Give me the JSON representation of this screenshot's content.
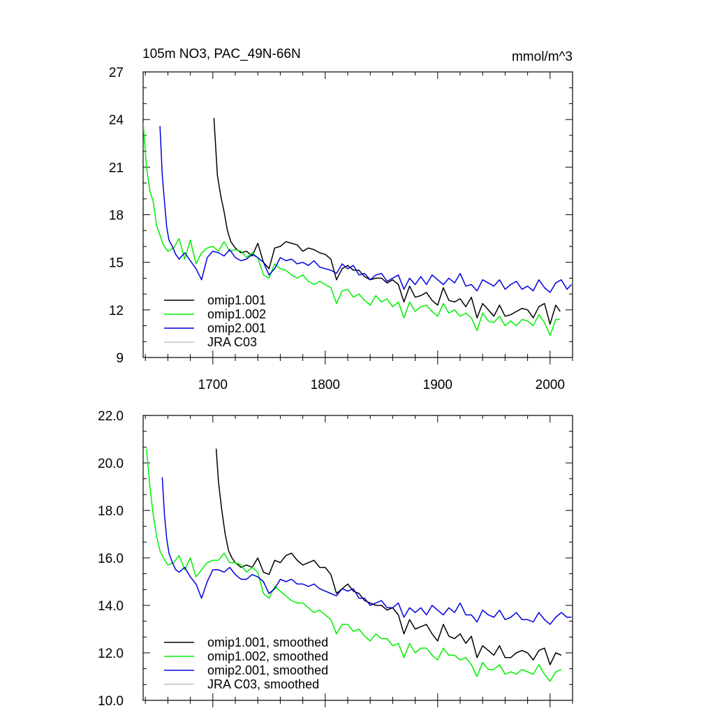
{
  "chart_data": [
    {
      "type": "line",
      "title": "105m NO3, PAC_49N-66N",
      "units": "mmol/m^3",
      "xlabel": "",
      "ylabel": "",
      "xlim": [
        1638,
        2020
      ],
      "ylim": [
        9,
        27
      ],
      "x_ticks": [
        1700,
        1800,
        1900,
        2000
      ],
      "y_ticks": [
        9,
        12,
        15,
        18,
        21,
        24,
        27
      ],
      "y_tick_labels": [
        "9",
        "12",
        "15",
        "18",
        "21",
        "24",
        "27"
      ],
      "legend": "bottom-left",
      "series": [
        {
          "name": "omip1.001",
          "color": "#000000",
          "x": [
            1701,
            1704,
            1707,
            1710,
            1713,
            1716,
            1720,
            1725,
            1730,
            1735,
            1740,
            1745,
            1750,
            1755,
            1760,
            1765,
            1770,
            1775,
            1780,
            1785,
            1790,
            1795,
            1800,
            1805,
            1810,
            1815,
            1820,
            1825,
            1830,
            1835,
            1840,
            1845,
            1850,
            1855,
            1860,
            1865,
            1870,
            1875,
            1880,
            1885,
            1890,
            1895,
            1900,
            1905,
            1910,
            1915,
            1920,
            1925,
            1930,
            1935,
            1940,
            1945,
            1950,
            1955,
            1960,
            1965,
            1970,
            1975,
            1980,
            1985,
            1990,
            1995,
            2000,
            2005,
            2009
          ],
          "values": [
            24.1,
            20.5,
            19.2,
            18.2,
            17.0,
            16.3,
            15.9,
            15.6,
            15.7,
            15.4,
            16.2,
            15.0,
            14.6,
            15.9,
            16.0,
            16.3,
            16.2,
            16.1,
            15.7,
            15.9,
            15.8,
            15.6,
            15.5,
            15.2,
            13.9,
            14.6,
            14.8,
            14.5,
            14.5,
            14.1,
            13.9,
            14.0,
            14.0,
            13.7,
            13.9,
            13.6,
            12.5,
            13.5,
            12.8,
            12.9,
            13.1,
            12.6,
            12.3,
            13.4,
            12.6,
            12.5,
            12.7,
            12.2,
            12.8,
            11.5,
            12.4,
            12.0,
            11.6,
            12.3,
            11.6,
            11.7,
            11.9,
            12.1,
            12.0,
            11.5,
            12.2,
            12.4,
            11.1,
            12.3,
            11.9
          ]
        },
        {
          "name": "omip1.002",
          "color": "#00ee00",
          "x": [
            1638,
            1641,
            1644,
            1647,
            1650,
            1653,
            1656,
            1660,
            1665,
            1670,
            1675,
            1680,
            1685,
            1690,
            1695,
            1700,
            1705,
            1710,
            1715,
            1720,
            1725,
            1730,
            1735,
            1740,
            1745,
            1750,
            1755,
            1760,
            1765,
            1770,
            1775,
            1780,
            1785,
            1790,
            1795,
            1800,
            1805,
            1810,
            1815,
            1820,
            1825,
            1830,
            1835,
            1840,
            1845,
            1850,
            1855,
            1860,
            1865,
            1870,
            1875,
            1880,
            1885,
            1890,
            1895,
            1900,
            1905,
            1910,
            1915,
            1920,
            1925,
            1930,
            1935,
            1940,
            1945,
            1950,
            1955,
            1960,
            1965,
            1970,
            1975,
            1980,
            1985,
            1990,
            1995,
            2000,
            2005,
            2009
          ],
          "values": [
            23.8,
            21.0,
            19.5,
            18.8,
            17.3,
            16.7,
            16.1,
            15.7,
            15.9,
            16.5,
            15.2,
            16.4,
            14.9,
            15.6,
            15.9,
            16.0,
            15.7,
            16.3,
            15.7,
            15.8,
            15.7,
            15.3,
            15.6,
            15.3,
            14.2,
            14.0,
            14.9,
            14.6,
            14.5,
            14.2,
            14.0,
            14.2,
            13.8,
            13.6,
            13.8,
            13.6,
            13.4,
            12.4,
            13.2,
            13.3,
            12.8,
            13.0,
            12.6,
            12.3,
            12.9,
            12.5,
            12.7,
            12.2,
            12.5,
            11.5,
            12.5,
            11.9,
            12.2,
            12.3,
            11.9,
            11.6,
            12.4,
            11.8,
            12.0,
            11.6,
            11.8,
            11.5,
            10.7,
            11.8,
            11.3,
            11.2,
            11.6,
            11.0,
            11.3,
            11.0,
            11.4,
            11.3,
            11.0,
            11.7,
            11.2,
            10.4,
            11.4,
            11.4
          ]
        },
        {
          "name": "omip2.001",
          "color": "#0000dd",
          "x": [
            1653,
            1655,
            1657,
            1659,
            1661,
            1664,
            1667,
            1670,
            1675,
            1680,
            1685,
            1690,
            1695,
            1700,
            1705,
            1710,
            1715,
            1720,
            1725,
            1730,
            1735,
            1740,
            1745,
            1750,
            1755,
            1760,
            1765,
            1770,
            1775,
            1780,
            1785,
            1790,
            1795,
            1800,
            1805,
            1810,
            1815,
            1820,
            1825,
            1830,
            1835,
            1840,
            1845,
            1850,
            1855,
            1860,
            1865,
            1870,
            1875,
            1880,
            1885,
            1890,
            1895,
            1900,
            1905,
            1910,
            1915,
            1920,
            1925,
            1930,
            1935,
            1940,
            1945,
            1950,
            1955,
            1960,
            1965,
            1970,
            1975,
            1980,
            1985,
            1990,
            1995,
            2000,
            2005,
            2010,
            2015,
            2019
          ],
          "values": [
            23.6,
            20.5,
            18.8,
            17.2,
            16.4,
            16.0,
            15.5,
            15.2,
            15.6,
            15.1,
            14.6,
            13.9,
            15.3,
            15.7,
            15.6,
            15.4,
            15.8,
            15.3,
            15.1,
            15.2,
            15.5,
            15.3,
            15.0,
            14.2,
            14.6,
            15.3,
            15.1,
            15.2,
            14.9,
            15.0,
            14.8,
            15.1,
            14.7,
            14.6,
            14.5,
            14.3,
            14.9,
            14.6,
            14.8,
            14.2,
            14.3,
            13.9,
            14.2,
            14.3,
            13.8,
            14.0,
            14.2,
            13.3,
            14.0,
            13.6,
            14.1,
            13.6,
            14.2,
            13.9,
            13.6,
            14.0,
            13.7,
            14.3,
            13.5,
            13.6,
            13.2,
            13.9,
            13.7,
            13.5,
            13.9,
            13.3,
            13.6,
            13.8,
            13.3,
            13.5,
            13.2,
            13.9,
            13.4,
            13.1,
            13.7,
            13.9,
            13.3,
            13.6
          ]
        },
        {
          "name": "JRA C03",
          "color": "#c0c0c0",
          "x": [],
          "values": []
        }
      ]
    },
    {
      "type": "line",
      "title": "",
      "xlabel": "",
      "ylabel": "",
      "xlim": [
        1638,
        2020
      ],
      "ylim": [
        10,
        22
      ],
      "x_ticks": [
        1700,
        1800,
        1900,
        2000
      ],
      "y_ticks": [
        10,
        12,
        14,
        16,
        18,
        20,
        22
      ],
      "y_tick_labels": [
        "10.0",
        "12.0",
        "14.0",
        "16.0",
        "18.0",
        "20.0",
        "22.0"
      ],
      "legend": "bottom-left",
      "series": [
        {
          "name": "omip1.001, smoothed",
          "color": "#000000",
          "x": [
            1703,
            1705,
            1708,
            1711,
            1714,
            1717,
            1720,
            1725,
            1730,
            1735,
            1740,
            1745,
            1750,
            1755,
            1760,
            1765,
            1770,
            1775,
            1780,
            1785,
            1790,
            1795,
            1800,
            1805,
            1810,
            1815,
            1820,
            1825,
            1830,
            1835,
            1840,
            1845,
            1850,
            1855,
            1860,
            1865,
            1870,
            1875,
            1880,
            1885,
            1890,
            1895,
            1900,
            1905,
            1910,
            1915,
            1920,
            1925,
            1930,
            1935,
            1940,
            1945,
            1950,
            1955,
            1960,
            1965,
            1970,
            1975,
            1980,
            1985,
            1990,
            1995,
            2000,
            2005,
            2010
          ],
          "values": [
            20.6,
            19.2,
            18.0,
            17.0,
            16.3,
            16.0,
            15.8,
            15.6,
            15.7,
            15.6,
            16.0,
            15.4,
            15.3,
            15.9,
            15.8,
            16.1,
            16.2,
            15.9,
            15.7,
            15.8,
            15.9,
            15.6,
            15.6,
            15.3,
            14.5,
            14.7,
            14.9,
            14.6,
            14.5,
            14.2,
            14.1,
            14.0,
            14.0,
            13.8,
            13.9,
            13.6,
            12.8,
            13.4,
            13.0,
            13.1,
            13.2,
            12.8,
            12.5,
            13.2,
            12.7,
            12.6,
            12.8,
            12.4,
            12.7,
            11.8,
            12.3,
            12.1,
            11.9,
            12.3,
            11.8,
            11.8,
            12.0,
            12.1,
            12.0,
            11.7,
            12.1,
            12.2,
            11.5,
            12.0,
            11.9
          ]
        },
        {
          "name": "omip1.002, smoothed",
          "color": "#00ee00",
          "x": [
            1641,
            1644,
            1647,
            1650,
            1653,
            1656,
            1660,
            1665,
            1670,
            1675,
            1680,
            1685,
            1690,
            1695,
            1700,
            1705,
            1710,
            1715,
            1720,
            1725,
            1730,
            1735,
            1740,
            1745,
            1750,
            1755,
            1760,
            1765,
            1770,
            1775,
            1780,
            1785,
            1790,
            1795,
            1800,
            1805,
            1810,
            1815,
            1820,
            1825,
            1830,
            1835,
            1840,
            1845,
            1850,
            1855,
            1860,
            1865,
            1870,
            1875,
            1880,
            1885,
            1890,
            1895,
            1900,
            1905,
            1910,
            1915,
            1920,
            1925,
            1930,
            1935,
            1940,
            1945,
            1950,
            1955,
            1960,
            1965,
            1970,
            1975,
            1980,
            1985,
            1990,
            1995,
            2000,
            2005,
            2010
          ],
          "values": [
            20.6,
            19.0,
            17.8,
            16.9,
            16.3,
            16.0,
            15.7,
            15.8,
            16.1,
            15.5,
            16.0,
            15.2,
            15.5,
            15.8,
            15.9,
            15.9,
            16.2,
            15.8,
            15.8,
            15.7,
            15.4,
            15.6,
            15.4,
            14.5,
            14.3,
            14.8,
            14.6,
            14.4,
            14.2,
            14.1,
            14.1,
            13.9,
            13.7,
            13.8,
            13.6,
            13.4,
            12.8,
            13.2,
            13.2,
            12.9,
            13.0,
            12.7,
            12.5,
            12.8,
            12.6,
            12.6,
            12.3,
            12.4,
            11.8,
            12.4,
            12.0,
            12.2,
            12.2,
            11.9,
            11.7,
            12.2,
            11.9,
            11.9,
            11.7,
            11.8,
            11.5,
            11.0,
            11.6,
            11.3,
            11.3,
            11.5,
            11.1,
            11.2,
            11.1,
            11.3,
            11.2,
            11.1,
            11.5,
            11.1,
            10.8,
            11.2,
            11.3
          ]
        },
        {
          "name": "omip2.001, smoothed",
          "color": "#0000dd",
          "x": [
            1655,
            1657,
            1659,
            1661,
            1664,
            1667,
            1670,
            1675,
            1680,
            1685,
            1690,
            1695,
            1700,
            1705,
            1710,
            1715,
            1720,
            1725,
            1730,
            1735,
            1740,
            1745,
            1750,
            1755,
            1760,
            1765,
            1770,
            1775,
            1780,
            1785,
            1790,
            1795,
            1800,
            1805,
            1810,
            1815,
            1820,
            1825,
            1830,
            1835,
            1840,
            1845,
            1850,
            1855,
            1860,
            1865,
            1870,
            1875,
            1880,
            1885,
            1890,
            1895,
            1900,
            1905,
            1910,
            1915,
            1920,
            1925,
            1930,
            1935,
            1940,
            1945,
            1950,
            1955,
            1960,
            1965,
            1970,
            1975,
            1980,
            1985,
            1990,
            1995,
            2000,
            2005,
            2010,
            2015,
            2019
          ],
          "values": [
            19.4,
            17.8,
            16.8,
            16.2,
            15.8,
            15.5,
            15.4,
            15.6,
            15.2,
            14.9,
            14.3,
            15.0,
            15.5,
            15.5,
            15.4,
            15.6,
            15.3,
            15.1,
            15.1,
            15.3,
            15.2,
            15.0,
            14.5,
            14.7,
            15.1,
            15.0,
            15.1,
            14.9,
            14.9,
            14.8,
            14.9,
            14.7,
            14.6,
            14.5,
            14.4,
            14.7,
            14.6,
            14.7,
            14.3,
            14.3,
            14.0,
            14.1,
            14.2,
            13.9,
            13.9,
            14.1,
            13.5,
            13.9,
            13.7,
            13.9,
            13.6,
            14.0,
            13.8,
            13.6,
            13.9,
            13.7,
            14.1,
            13.6,
            13.6,
            13.3,
            13.8,
            13.6,
            13.5,
            13.8,
            13.4,
            13.5,
            13.7,
            13.4,
            13.4,
            13.3,
            13.7,
            13.4,
            13.2,
            13.5,
            13.7,
            13.5,
            13.5
          ]
        },
        {
          "name": "JRA C03, smoothed",
          "color": "#c0c0c0",
          "x": [],
          "values": []
        }
      ]
    }
  ]
}
